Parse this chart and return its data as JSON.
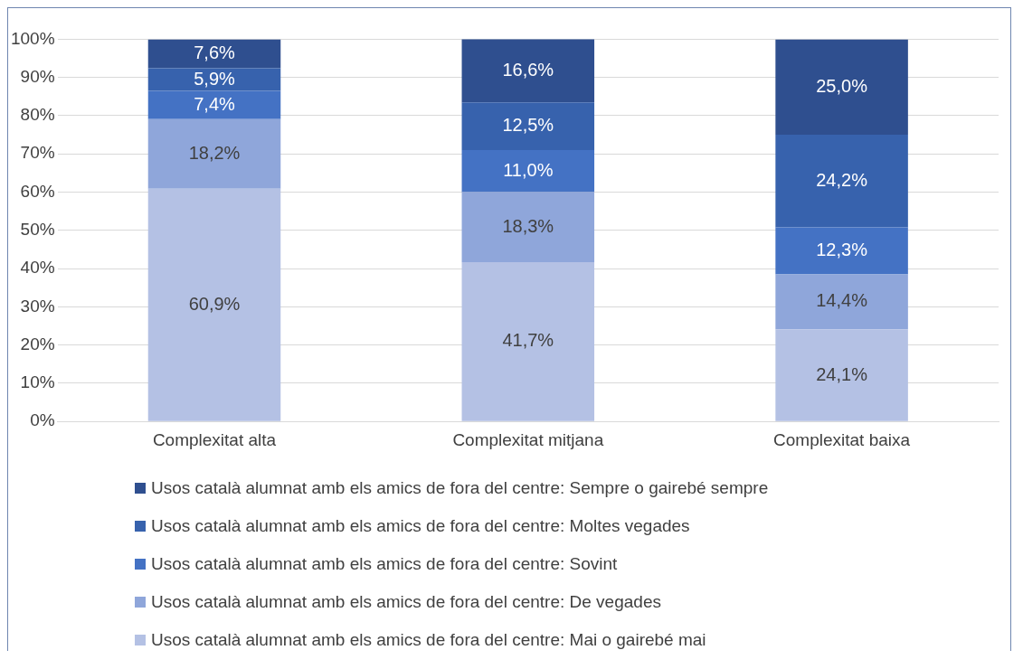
{
  "chart_data": {
    "type": "bar",
    "stacked": true,
    "categories": [
      "Complexitat alta",
      "Complexitat mitjana",
      "Complexitat baixa"
    ],
    "series": [
      {
        "name": "Usos català alumnat amb els amics de fora del centre: Mai o gairebé mai",
        "color": "#b4c1e4",
        "values": [
          60.9,
          41.7,
          24.1
        ],
        "value_labels": [
          "60,9%",
          "41,7%",
          "24,1%"
        ]
      },
      {
        "name": "Usos català alumnat amb els amics de fora del centre: De vegades",
        "color": "#8fa6da",
        "values": [
          18.2,
          18.3,
          14.4
        ],
        "value_labels": [
          "18,2%",
          "18,3%",
          "14,4%"
        ]
      },
      {
        "name": "Usos català alumnat amb els amics de fora del centre: Sovint",
        "color": "#4472c4",
        "values": [
          7.4,
          11.0,
          12.3
        ],
        "value_labels": [
          "7,4%",
          "11,0%",
          "12,3%"
        ]
      },
      {
        "name": "Usos català alumnat amb els amics de fora del centre: Moltes vegades",
        "color": "#3762ad",
        "values": [
          5.9,
          12.5,
          24.2
        ],
        "value_labels": [
          "5,9%",
          "12,5%",
          "24,2%"
        ]
      },
      {
        "name": "Usos català alumnat amb els amics de fora del centre: Sempre o gairebé sempre",
        "color": "#2f4f8f",
        "values": [
          7.6,
          16.6,
          25.0
        ],
        "value_labels": [
          "7,6%",
          "16,6%",
          "25,0%"
        ]
      }
    ],
    "ylim": [
      0,
      100
    ],
    "yticks": [
      {
        "value": 0,
        "label": "0%"
      },
      {
        "value": 10,
        "label": "10%"
      },
      {
        "value": 20,
        "label": "20%"
      },
      {
        "value": 30,
        "label": "30%"
      },
      {
        "value": 40,
        "label": "40%"
      },
      {
        "value": 50,
        "label": "50%"
      },
      {
        "value": 60,
        "label": "60%"
      },
      {
        "value": 70,
        "label": "70%"
      },
      {
        "value": 80,
        "label": "80%"
      },
      {
        "value": 90,
        "label": "90%"
      },
      {
        "value": 100,
        "label": "100%"
      }
    ],
    "grid": "y",
    "legend": "bottom"
  }
}
